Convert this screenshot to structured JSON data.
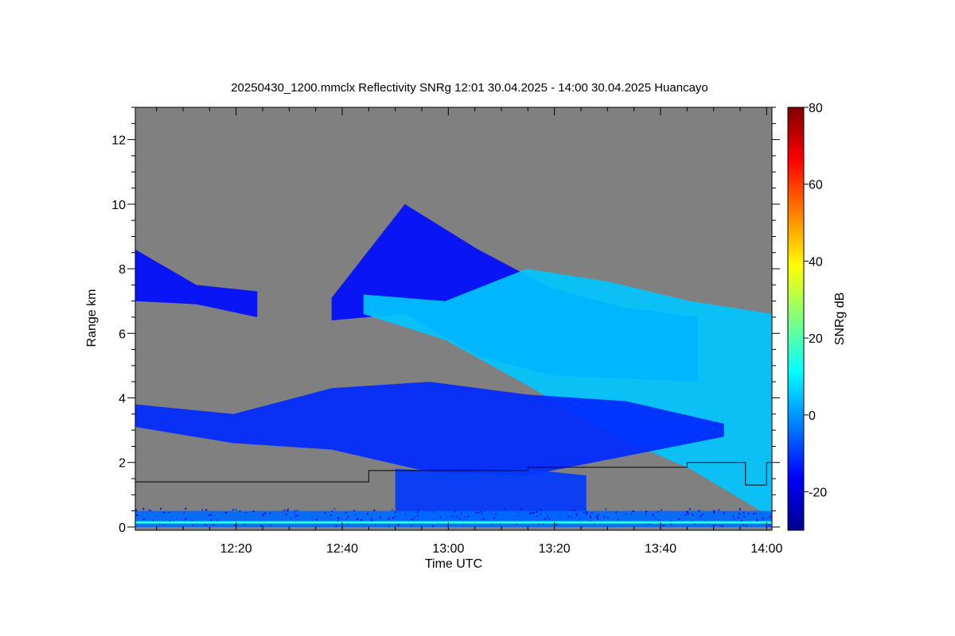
{
  "chart_data": {
    "type": "heatmap",
    "title": "20250430_1200.mmclx Reflectivity SNRg   12:01 30.04.2025 - 14:00 30.04.2025 Huancayo",
    "xlabel": "Time UTC",
    "ylabel": "Range km",
    "colorbar_label": "SNRg dB",
    "xlim": [
      "12:01",
      "14:01"
    ],
    "ylim": [
      -0.1,
      13
    ],
    "x_ticks": [
      "12:20",
      "12:40",
      "13:00",
      "13:20",
      "13:40",
      "14:00"
    ],
    "y_ticks": [
      0,
      2,
      4,
      6,
      8,
      10,
      12
    ],
    "colorbar_range": [
      -30,
      80
    ],
    "colorbar_ticks": [
      -20,
      0,
      20,
      40,
      60,
      80
    ],
    "no_data_color": "#808080",
    "colormap": [
      "#00008f",
      "#0000ff",
      "#0080ff",
      "#00ffff",
      "#80ff80",
      "#ffff00",
      "#ff8000",
      "#ff0000",
      "#800000"
    ],
    "cloud_base_line": [
      {
        "t": "12:01",
        "km": 1.4
      },
      {
        "t": "12:45",
        "km": 1.4
      },
      {
        "t": "12:45",
        "km": 1.75
      },
      {
        "t": "13:15",
        "km": 1.75
      },
      {
        "t": "13:15",
        "km": 1.85
      },
      {
        "t": "13:45",
        "km": 1.85
      },
      {
        "t": "13:45",
        "km": 2.0
      },
      {
        "t": "13:56",
        "km": 2.0
      },
      {
        "t": "13:56",
        "km": 1.3
      },
      {
        "t": "14:00",
        "km": 1.3
      },
      {
        "t": "14:00",
        "km": 2.0
      },
      {
        "t": "14:01",
        "km": 2.0
      }
    ],
    "echo_layers": [
      {
        "name": "upper-cirrus",
        "t_start": "12:38",
        "t_end": "13:47",
        "top_km": [
          7.1,
          10.0,
          8.6,
          7.4,
          6.8,
          6.5
        ],
        "base_km": [
          6.4,
          6.6,
          5.3,
          4.7,
          4.6,
          4.5
        ],
        "snr_db": -15
      },
      {
        "name": "main-anvil",
        "t_start": "12:44",
        "t_end": "14:01",
        "top_km": [
          7.2,
          7.0,
          8.0,
          7.6,
          7.0,
          6.6
        ],
        "base_km": [
          6.6,
          5.8,
          4.4,
          2.9,
          1.8,
          0.3
        ],
        "snr_db": 5
      },
      {
        "name": "left-upper-band",
        "t_start": "12:01",
        "t_end": "12:24",
        "top_km": [
          8.6,
          7.5,
          7.3
        ],
        "base_km": [
          7.0,
          6.9,
          6.5
        ],
        "snr_db": -15
      },
      {
        "name": "mid-layer",
        "t_start": "12:01",
        "t_end": "13:52",
        "top_km": [
          3.8,
          3.5,
          4.3,
          4.5,
          4.1,
          3.9,
          3.2
        ],
        "base_km": [
          3.1,
          2.6,
          2.4,
          1.7,
          1.6,
          2.2,
          2.8
        ],
        "snr_db": -12
      },
      {
        "name": "low-precip",
        "t_start": "12:50",
        "t_end": "13:26",
        "top_km": [
          1.8,
          1.7,
          1.8,
          1.6
        ],
        "base_km": [
          0.2,
          0.2,
          0.2,
          0.2
        ],
        "snr_db": -10
      },
      {
        "name": "surface-clutter",
        "t_start": "12:01",
        "t_end": "14:01",
        "top_km": [
          0.5,
          0.5,
          0.5
        ],
        "base_km": [
          0.0,
          0.0,
          0.0
        ],
        "snr_db": -5
      }
    ]
  }
}
